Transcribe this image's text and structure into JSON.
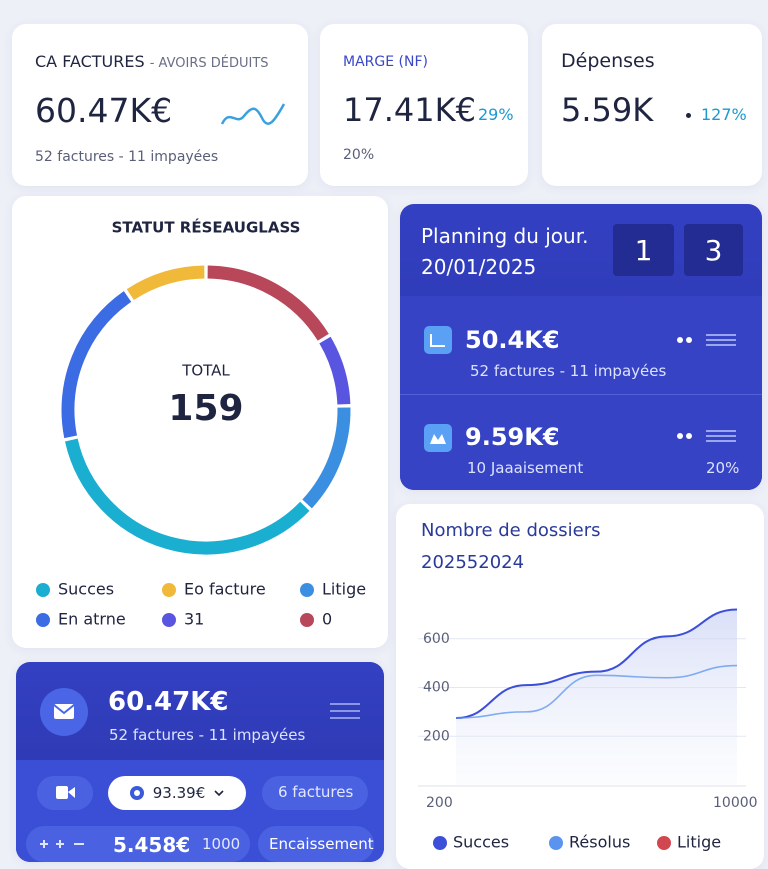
{
  "kpis": [
    {
      "label": "CA FACTURES",
      "sublabel": "- AVOIRS DÉDUITS",
      "value": "60.47K€",
      "note": "52 factures - 11 impayées"
    },
    {
      "label": "MARGE (NF)",
      "value": "17.41K€",
      "change": "29%",
      "note": "20%"
    },
    {
      "label": "Dépenses",
      "value": "5.59K",
      "change": "127%"
    }
  ],
  "planning": {
    "title": "Planning du jour.",
    "date": "20/01/2025",
    "counters": [
      "1",
      "3"
    ],
    "items": [
      {
        "value": "50.4K€",
        "note": "52 factures - 11 impayées"
      },
      {
        "value": "9.59K€",
        "note": "10 Jaaaisement",
        "pct": "20%"
      }
    ]
  },
  "summary": {
    "value": "60.47K€",
    "note": "52 factures - 11 impayées",
    "chips": [
      "93.39€",
      "6 factures",
      "5.458€",
      "1000",
      "Encaissement"
    ]
  },
  "chart_data": [
    {
      "type": "donut",
      "title": "STATUT RÉSEAUGLASS",
      "total_label": "TOTAL",
      "total": 159,
      "categories": [
        "0",
        "31",
        "Litige",
        "Succes",
        "En atrne",
        "Eo facture"
      ],
      "values": [
        26,
        13,
        20,
        55,
        30,
        15
      ],
      "colors": [
        "#b8475a",
        "#5a55e0",
        "#3b8fe0",
        "#1aaed0",
        "#3b6ce4",
        "#f0b93a"
      ],
      "legend_order": [
        3,
        5,
        2,
        4,
        1,
        0
      ]
    },
    {
      "type": "line",
      "title": "Nombre de dossiers",
      "subtitle": "202552024",
      "x": [
        200,
        2650,
        5100,
        7550,
        10000
      ],
      "series": [
        {
          "name": "Succes",
          "color": "#3c4fd8",
          "values": [
            275,
            410,
            465,
            610,
            720
          ]
        },
        {
          "name": "Résolus",
          "color": "#5a94ee",
          "values": [
            275,
            300,
            450,
            440,
            490
          ]
        },
        {
          "name": "Litige",
          "color": "#d0474f",
          "values": [
            null,
            null,
            null,
            null,
            null
          ]
        }
      ],
      "xlim": [
        200,
        10000
      ],
      "xticks": [
        200,
        10000
      ],
      "ylim": [
        0,
        800
      ],
      "yticks": [
        200,
        400,
        600
      ],
      "grid": true
    }
  ]
}
